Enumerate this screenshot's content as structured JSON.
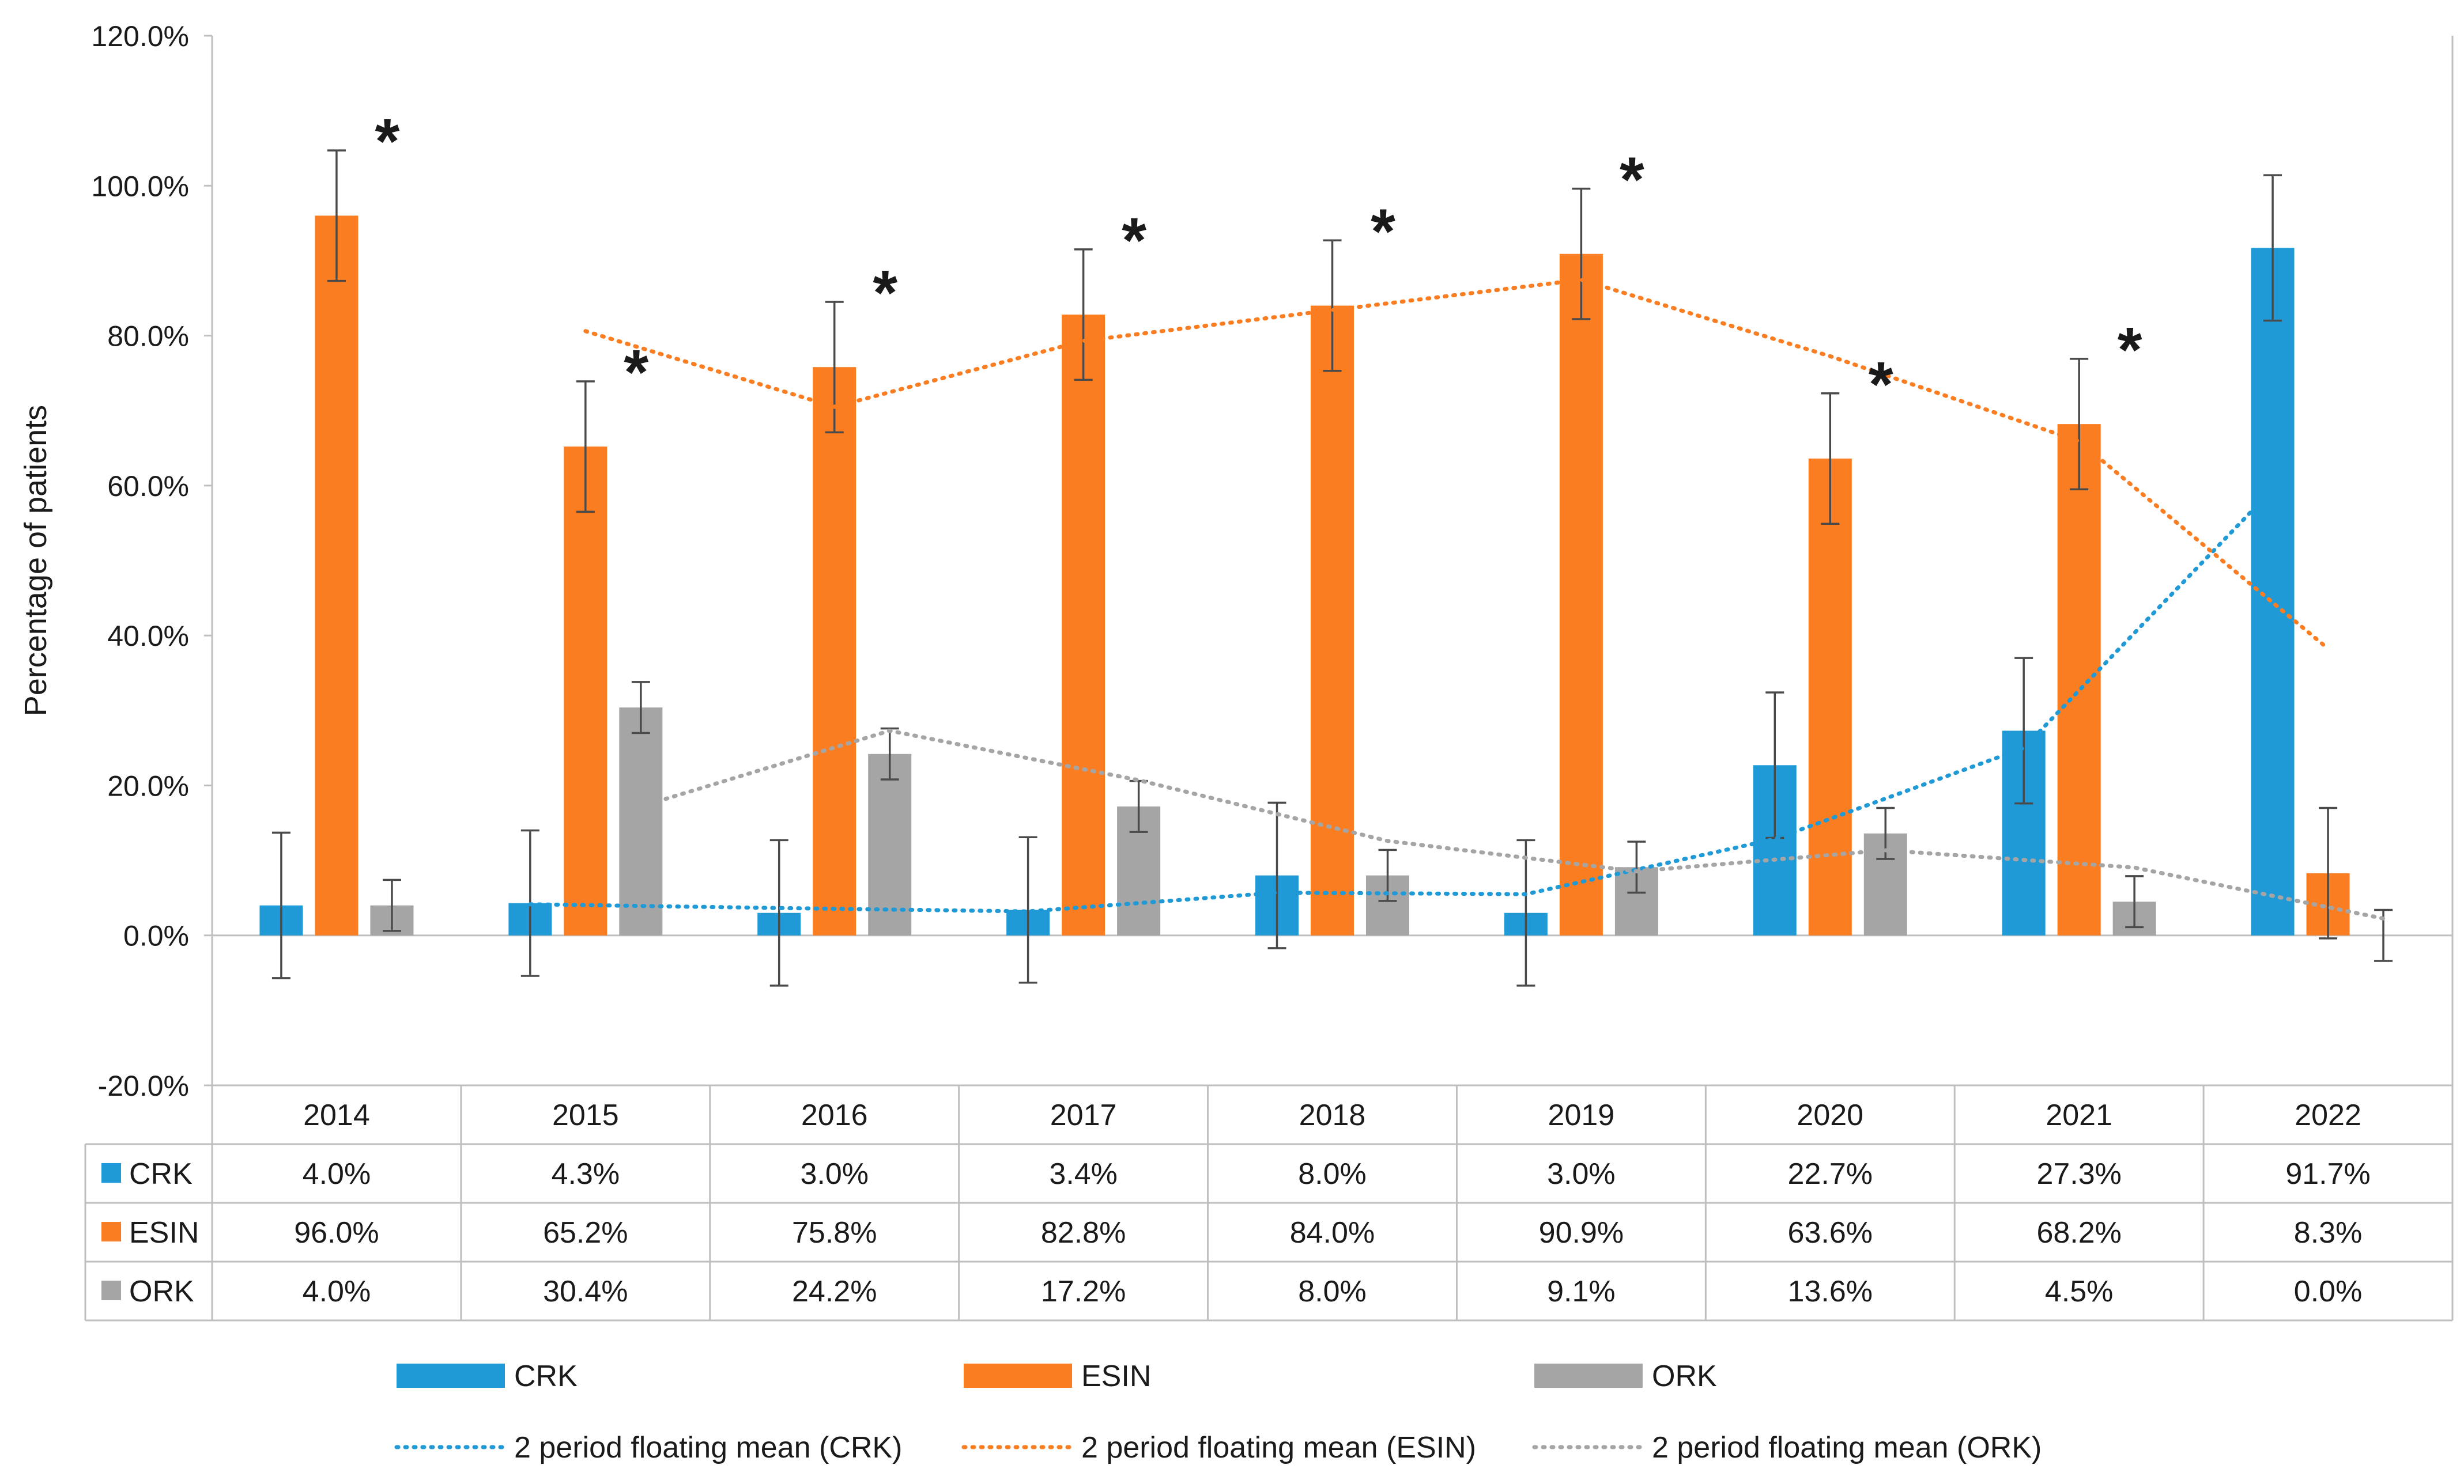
{
  "chart_data": {
    "type": "bar",
    "title": "",
    "xlabel": "",
    "ylabel": "Percentage of patients",
    "ylim": [
      -20,
      120
    ],
    "y_ticks": [
      "-20.0%",
      "0.0%",
      "20.0%",
      "40.0%",
      "60.0%",
      "80.0%",
      "100.0%",
      "120.0%"
    ],
    "y_tick_values": [
      -20,
      0,
      20,
      40,
      60,
      80,
      100,
      120
    ],
    "categories": [
      "2014",
      "2015",
      "2016",
      "2017",
      "2018",
      "2019",
      "2020",
      "2021",
      "2022"
    ],
    "series": [
      {
        "name": "CRK",
        "color": "#1f9ad6",
        "values": [
          4.0,
          4.3,
          3.0,
          3.4,
          8.0,
          3.0,
          22.7,
          27.3,
          91.7
        ],
        "labels": [
          "4.0%",
          "4.3%",
          "3.0%",
          "3.4%",
          "8.0%",
          "3.0%",
          "22.7%",
          "27.3%",
          "91.7%"
        ],
        "error": [
          9.7,
          9.7,
          9.7,
          9.7,
          9.7,
          9.7,
          9.7,
          9.7,
          9.7
        ]
      },
      {
        "name": "ESIN",
        "color": "#fb7d22",
        "values": [
          96.0,
          65.2,
          75.8,
          82.8,
          84.0,
          90.9,
          63.6,
          68.2,
          8.3
        ],
        "labels": [
          "96.0%",
          "65.2%",
          "75.8%",
          "82.8%",
          "84.0%",
          "90.9%",
          "63.6%",
          "68.2%",
          "8.3%"
        ],
        "error": [
          8.7,
          8.7,
          8.7,
          8.7,
          8.7,
          8.7,
          8.7,
          8.7,
          8.7
        ]
      },
      {
        "name": "ORK",
        "color": "#a5a5a5",
        "values": [
          4.0,
          30.4,
          24.2,
          17.2,
          8.0,
          9.1,
          13.6,
          4.5,
          0.0
        ],
        "labels": [
          "4.0%",
          "30.4%",
          "24.2%",
          "17.2%",
          "8.0%",
          "9.1%",
          "13.6%",
          "4.5%",
          "0.0%"
        ],
        "error": [
          3.4,
          3.4,
          3.4,
          3.4,
          3.4,
          3.4,
          3.4,
          3.4,
          3.4
        ]
      }
    ],
    "trendlines": [
      {
        "name": "2 period floating mean (CRK)",
        "series": "CRK",
        "color": "#1f9ad6"
      },
      {
        "name": "2 period floating mean (ESIN)",
        "series": "ESIN",
        "color": "#fb7d22"
      },
      {
        "name": "2 period floating mean (ORK)",
        "series": "ORK",
        "color": "#a5a5a5"
      }
    ],
    "significance_marker": "*",
    "significant_categories": [
      "2014",
      "2015",
      "2016",
      "2017",
      "2018",
      "2019",
      "2020",
      "2021"
    ],
    "legend_position": "bottom",
    "data_table": true
  }
}
